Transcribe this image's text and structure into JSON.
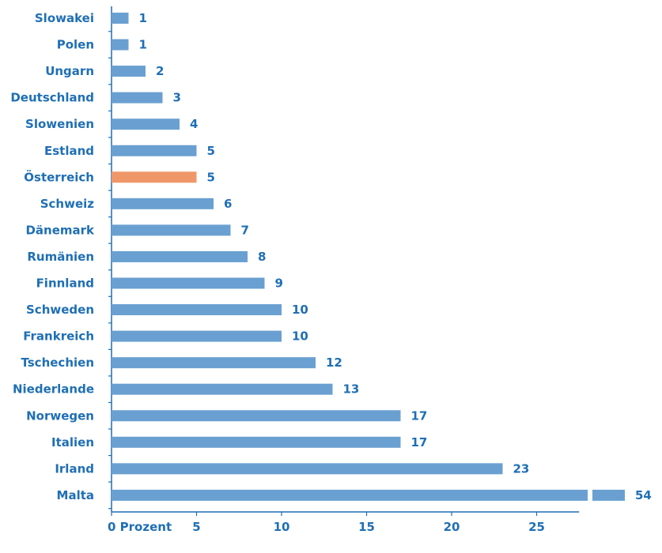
{
  "colors": {
    "bar": "#6aa0d1",
    "highlight": "#f0976a",
    "text": "#1f6fb4",
    "axis": "#1f6fb4"
  },
  "chart_data": {
    "type": "bar",
    "orientation": "horizontal",
    "title": "",
    "xlabel": "",
    "ylabel": "",
    "xlim": [
      0,
      27.5
    ],
    "axis_break": true,
    "categories": [
      "Slowakei",
      "Polen",
      "Ungarn",
      "Deutschland",
      "Slowenien",
      "Estland",
      "Österreich",
      "Schweiz",
      "Dänemark",
      "Rumänien",
      "Finnland",
      "Schweden",
      "Frankreich",
      "Tschechien",
      "Niederlande",
      "Norwegen",
      "Italien",
      "Irland",
      "Malta"
    ],
    "values": [
      1,
      1,
      2,
      3,
      4,
      5,
      5,
      6,
      7,
      8,
      9,
      10,
      10,
      12,
      13,
      17,
      17,
      23,
      54
    ],
    "value_labels": [
      "1",
      "1",
      "2",
      "3",
      "4",
      "5",
      "5",
      "6",
      "7",
      "8",
      "9",
      "10",
      "10",
      "12",
      "13",
      "17",
      "17",
      "23",
      "54"
    ],
    "highlighted_category": "Österreich",
    "x_ticks": [
      0,
      5,
      10,
      15,
      20,
      25
    ],
    "x_tick_labels": [
      "0 Prozent",
      "5",
      "10",
      "15",
      "20",
      "25"
    ],
    "grid": false,
    "legend": "none"
  }
}
